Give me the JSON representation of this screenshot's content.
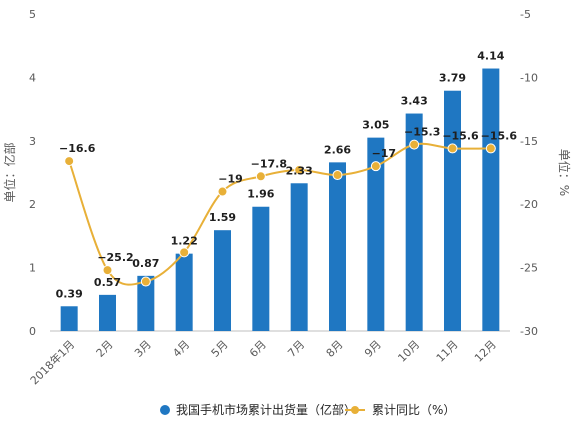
{
  "chart_data": {
    "type": "bar",
    "categories": [
      "2018年1月",
      "2月",
      "3月",
      "4月",
      "5月",
      "6月",
      "7月",
      "8月",
      "9月",
      "10月",
      "11月",
      "12月"
    ],
    "series": [
      {
        "name": "我国手机市场累计出货量（亿部）",
        "type": "bar",
        "axis": "left",
        "color": "#1f77c2",
        "values": [
          0.39,
          0.57,
          0.87,
          1.22,
          1.59,
          1.96,
          2.33,
          2.66,
          3.05,
          3.43,
          3.79,
          4.14
        ]
      },
      {
        "name": "累计同比（%）",
        "type": "line",
        "axis": "right",
        "color": "#e8b038",
        "values": [
          -16.6,
          -25.2,
          -26.1,
          -23.8,
          -19.0,
          -17.8,
          -17.3,
          -17.7,
          -17.0,
          -15.3,
          -15.6,
          -15.6
        ],
        "labels": [
          "-16.6",
          "-25.2",
          "",
          "",
          "-19",
          "-17.8",
          "",
          "",
          "-17",
          "-15.3",
          "-15.6",
          "-15.6"
        ]
      }
    ],
    "y_left": {
      "label": "单位：亿部",
      "ylim": [
        0,
        5
      ],
      "ticks": [
        0,
        1,
        2,
        3,
        4,
        5
      ]
    },
    "y_right": {
      "label": "单位：%",
      "ylim": [
        -30,
        -5
      ],
      "ticks": [
        -5,
        -10,
        -15,
        -20,
        -25,
        -30
      ]
    },
    "grid": false,
    "legend": "bottom"
  },
  "legend": {
    "bar_label": "我国手机市场累计出货量（亿部）",
    "line_label": "累计同比（%）"
  },
  "axis": {
    "left_title": "单位：亿部",
    "right_title": "单位：%"
  }
}
